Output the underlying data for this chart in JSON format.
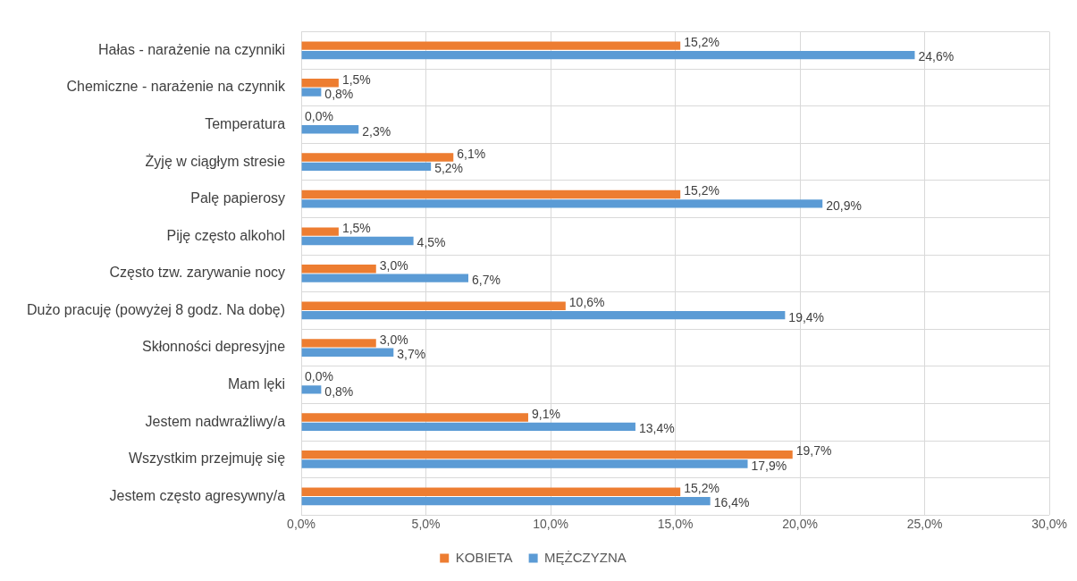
{
  "chart_data": {
    "type": "bar",
    "orientation": "horizontal",
    "categories": [
      "Hałas - narażenie na czynniki",
      "Chemiczne - narażenie na czynnik",
      "Temperatura",
      "Żyję w ciągłym stresie",
      "Palę papierosy",
      "Piję często alkohol",
      "Często tzw. zarywanie nocy",
      "Dużo pracuję (powyżej 8 godz. Na dobę)",
      "Skłonności depresyjne",
      "Mam lęki",
      "Jestem nadwrażliwy/a",
      "Wszystkim przejmuję się",
      "Jestem często agresywny/a"
    ],
    "series": [
      {
        "name": "KOBIETA",
        "color": "#ed7d31",
        "values": [
          15.2,
          1.5,
          0.0,
          6.1,
          15.2,
          1.5,
          3.0,
          10.6,
          3.0,
          0.0,
          9.1,
          19.7,
          15.2
        ],
        "value_labels": [
          "15,2%",
          "1,5%",
          "0,0%",
          "6,1%",
          "15,2%",
          "1,5%",
          "3,0%",
          "10,6%",
          "3,0%",
          "0,0%",
          "9,1%",
          "19,7%",
          "15,2%"
        ]
      },
      {
        "name": "MĘŻCZYZNA",
        "color": "#5b9bd5",
        "values": [
          24.6,
          0.8,
          2.3,
          5.2,
          20.9,
          4.5,
          6.7,
          19.4,
          3.7,
          0.8,
          13.4,
          17.9,
          16.4
        ],
        "value_labels": [
          "24,6%",
          "0,8%",
          "2,3%",
          "5,2%",
          "20,9%",
          "4,5%",
          "6,7%",
          "19,4%",
          "3,7%",
          "0,8%",
          "13,4%",
          "17,9%",
          "16,4%"
        ]
      }
    ],
    "xlim": [
      0,
      30
    ],
    "xticks": [
      {
        "value": 0,
        "label": "0,0%"
      },
      {
        "value": 5,
        "label": "5,0%"
      },
      {
        "value": 10,
        "label": "10,0%"
      },
      {
        "value": 15,
        "label": "15,0%"
      },
      {
        "value": 20,
        "label": "20,0%"
      },
      {
        "value": 25,
        "label": "25,0%"
      },
      {
        "value": 30,
        "label": "30,0%"
      }
    ],
    "grid": true,
    "legend": "bottom"
  }
}
